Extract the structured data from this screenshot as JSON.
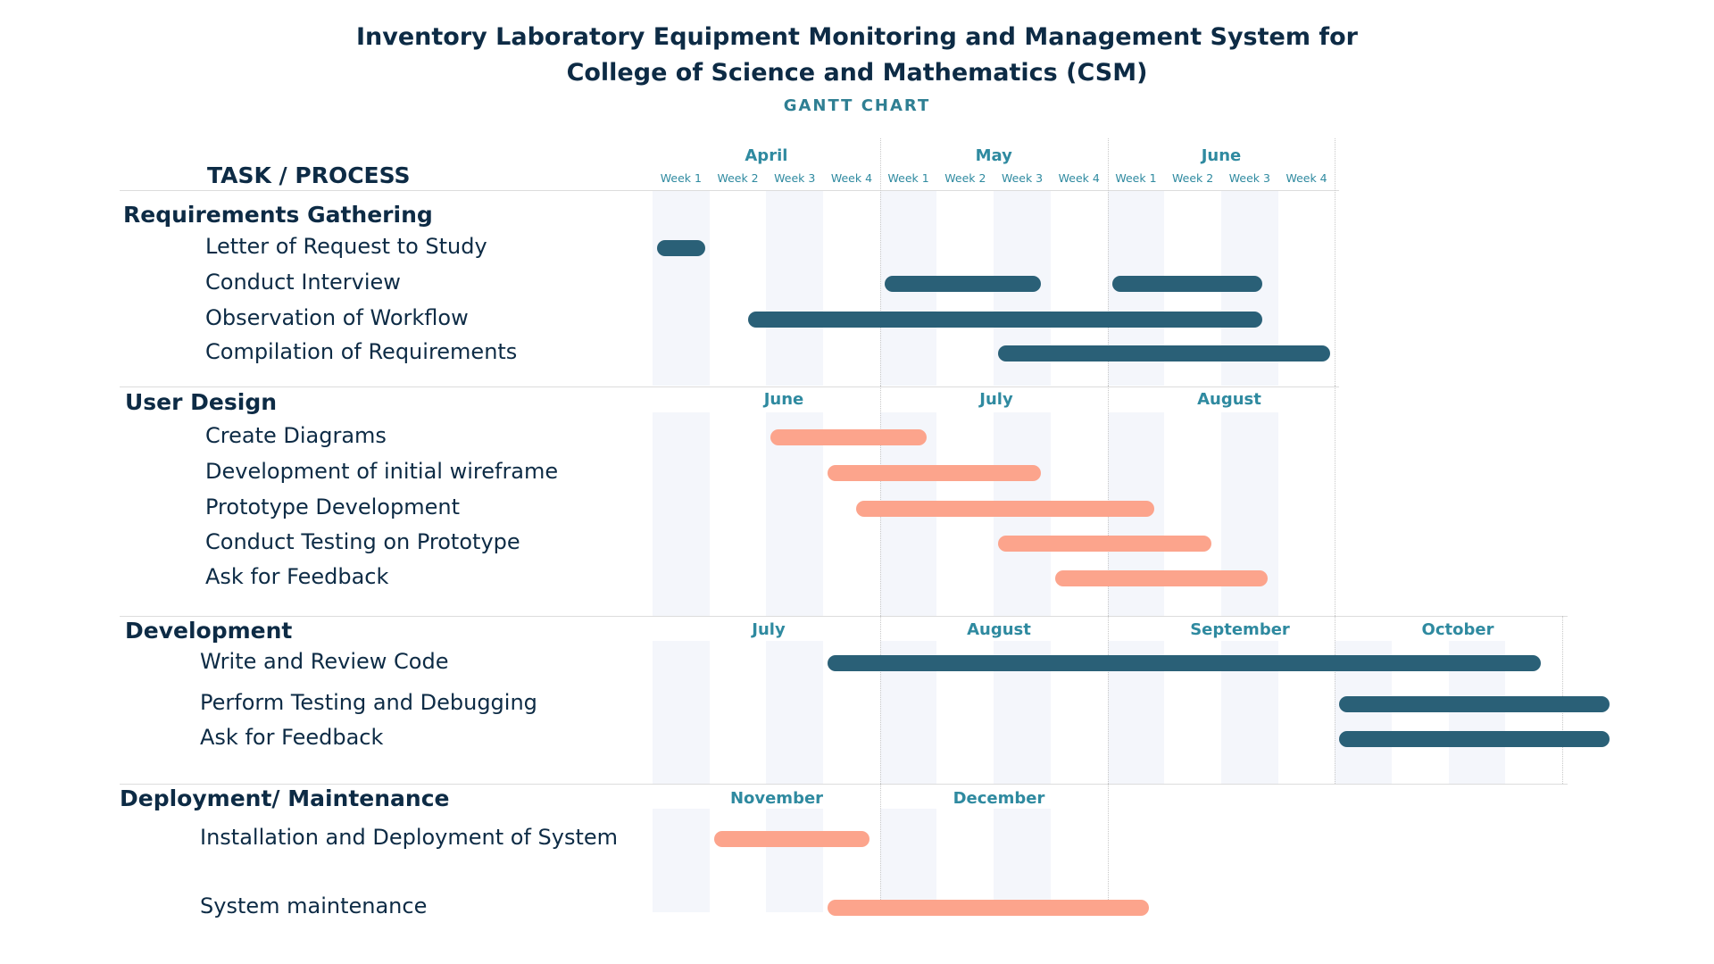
{
  "colors": {
    "dark": "#2a6077",
    "light": "#fca48c",
    "month": "#2f8aa0",
    "stripe": "#f4f6fb"
  },
  "chart_data": {
    "type": "gantt",
    "title_line1": "Inventory Laboratory Equipment Monitoring and Management System for",
    "title_line2": "College of Science and Mathematics (CSM)",
    "subtitle": "GANTT CHART",
    "task_header": "TASK / PROCESS",
    "week_labels": [
      "Week 1",
      "Week 2",
      "Week 3",
      "Week 4",
      "Week 1",
      "Week 2",
      "Week 3",
      "Week 4",
      "Week 1",
      "Week 2",
      "Week 3",
      "Week 4"
    ],
    "sections": [
      {
        "name": "Requirements Gathering",
        "months": [
          "April",
          "May",
          "June"
        ],
        "tasks": [
          {
            "name": "Letter of Request to Study",
            "start_week": 1,
            "end_week": 1,
            "color": "dark"
          },
          {
            "name": "Conduct Interview",
            "segments": [
              [
                5,
                6.9
              ],
              [
                9,
                10.8
              ]
            ],
            "color": "dark"
          },
          {
            "name": "Observation of Workflow",
            "start_week": 2.6,
            "end_week": 10.8,
            "color": "dark"
          },
          {
            "name": "Compilation of Requirements",
            "start_week": 7,
            "end_week": 12,
            "color": "dark"
          }
        ]
      },
      {
        "name": "User Design",
        "months": [
          "June",
          "July",
          "August"
        ],
        "tasks": [
          {
            "name": "Create Diagrams",
            "start_week": 3,
            "end_week": 4.9,
            "color": "light"
          },
          {
            "name": "Development of initial wireframe",
            "start_week": 4,
            "end_week": 6.9,
            "color": "light"
          },
          {
            "name": "Prototype Development",
            "start_week": 4.5,
            "end_week": 8.9,
            "color": "light"
          },
          {
            "name": "Conduct Testing on Prototype",
            "start_week": 7,
            "end_week": 9.9,
            "color": "light"
          },
          {
            "name": "Ask for Feedback",
            "start_week": 8,
            "end_week": 10.9,
            "color": "light"
          }
        ]
      },
      {
        "name": "Development",
        "months": [
          "July",
          "August",
          "September",
          "October"
        ],
        "tasks": [
          {
            "name": "Write and Review Code",
            "start_week": 4,
            "end_week": 15.7,
            "color": "dark"
          },
          {
            "name": "Perform Testing and Debugging",
            "start_week": 13,
            "end_week": 16.9,
            "color": "dark"
          },
          {
            "name": "Ask for Feedback",
            "start_week": 13,
            "end_week": 16.9,
            "color": "dark"
          }
        ]
      },
      {
        "name": "Deployment/ Maintenance",
        "months": [
          "November",
          "December"
        ],
        "tasks": [
          {
            "name": "Installation and Deployment of System",
            "start_week": 2,
            "end_week": 3.9,
            "color": "light"
          },
          {
            "name": "System maintenance",
            "start_week": 4,
            "end_week": 8.8,
            "color": "light"
          }
        ]
      }
    ]
  }
}
